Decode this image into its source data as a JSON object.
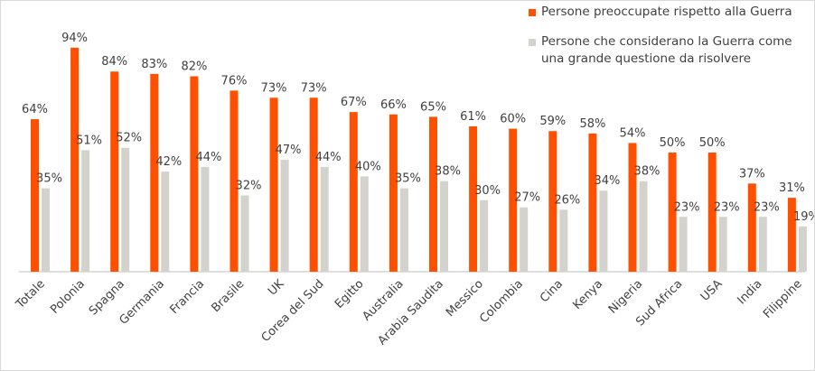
{
  "chart_data": {
    "type": "bar",
    "categories": [
      "Totale",
      "Polonia",
      "Spagna",
      "Germania",
      "Francia",
      "Brasile",
      "UK",
      "Corea del Sud",
      "Egitto",
      "Australia",
      "Arabia Saudita",
      "Messico",
      "Colombia",
      "Cina",
      "Kenya",
      "Nigeria",
      "Sud Africa",
      "USA",
      "India",
      "Filippine"
    ],
    "series": [
      {
        "name": "Persone preoccupate rispetto alla Guerra",
        "color": "#FF5000",
        "values": [
          64,
          94,
          84,
          83,
          82,
          76,
          73,
          73,
          67,
          66,
          65,
          61,
          60,
          59,
          58,
          54,
          50,
          50,
          37,
          31
        ]
      },
      {
        "name": "Persone che considerano la Guerra come una grande questione da risolvere",
        "color": "#D3D2CC",
        "values": [
          35,
          51,
          52,
          42,
          44,
          32,
          47,
          44,
          40,
          35,
          38,
          30,
          27,
          26,
          34,
          38,
          23,
          23,
          23,
          19
        ]
      }
    ],
    "value_format": "percent",
    "ylim": [
      0,
      100
    ],
    "grid": false,
    "legend_position": "top-right",
    "axis_color": "#BFBFBF",
    "label_color": "#404040"
  }
}
